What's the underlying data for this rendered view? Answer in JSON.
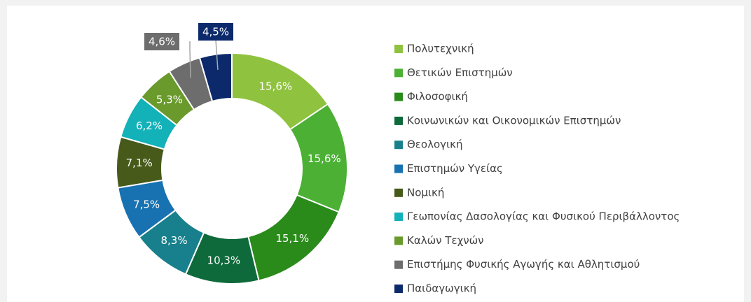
{
  "chart_data": {
    "type": "donut",
    "categories": [
      "Πολυτεχνική",
      "Θετικών Επιστημών",
      "Φιλοσοφική",
      "Κοινωνικών και Οικονομικών Επιστημών",
      "Θεολογική",
      "Επιστημών Υγείας",
      "Νομική",
      "Γεωπονίας Δασολογίας και Φυσικού Περιβάλλοντος",
      "Καλών Τεχνών",
      "Επιστήμης Φυσικής Αγωγής και Αθλητισμού",
      "Παιδαγωγική"
    ],
    "values": [
      15.6,
      15.6,
      15.1,
      10.3,
      8.3,
      7.5,
      7.1,
      6.2,
      5.3,
      4.6,
      4.5
    ],
    "value_labels": [
      "15,6%",
      "15,6%",
      "15,1%",
      "10,3%",
      "8,3%",
      "7,5%",
      "7,1%",
      "6,2%",
      "5,3%",
      "4,6%",
      "4,5%"
    ],
    "colors": [
      "#8fc23e",
      "#4bb033",
      "#2a8b1b",
      "#0e6a3b",
      "#17808c",
      "#1872b1",
      "#485a1a",
      "#13b1b8",
      "#699a2b",
      "#6d6d6d",
      "#0c2a6b"
    ],
    "legend": "right"
  }
}
